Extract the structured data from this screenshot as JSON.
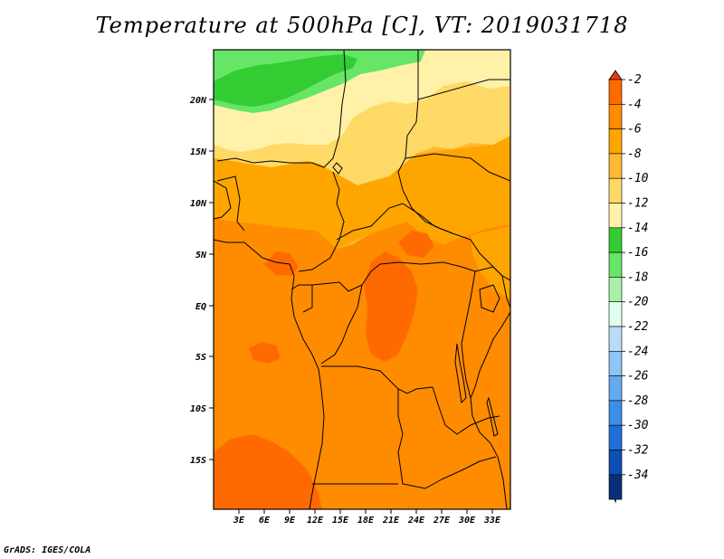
{
  "title": "Temperature at 500hPa [C], VT: 2019031718",
  "credit": "GrADS: IGES/COLA",
  "map": {
    "lon_labels": [
      "3E",
      "6E",
      "9E",
      "12E",
      "15E",
      "18E",
      "21E",
      "24E",
      "27E",
      "30E",
      "33E"
    ],
    "lat_labels": [
      "20N",
      "15N",
      "10N",
      "5N",
      "EQ",
      "5S",
      "10S",
      "15S"
    ]
  },
  "colorbar": {
    "levels": [
      "-2",
      "-4",
      "-6",
      "-8",
      "-10",
      "-12",
      "-14",
      "-16",
      "-18",
      "-20",
      "-22",
      "-24",
      "-26",
      "-28",
      "-30",
      "-32",
      "-34"
    ],
    "colors": [
      "#ff6a00",
      "#ff8c00",
      "#ffa500",
      "#ffb933",
      "#ffd966",
      "#fff2a8",
      "#33cc33",
      "#66e566",
      "#a8f0a8",
      "#e0fff0",
      "#b8dcf8",
      "#8ec5f4",
      "#64aaef",
      "#3c8ee6",
      "#1f6fd6",
      "#0c4fb5",
      "#08307a",
      "#06156a"
    ],
    "top_arrow_color": "#e8380e",
    "bottom_arrow_color": "#dcdcf5"
  },
  "fill_colors": {
    "red": "#ff6a00",
    "orange": "#ff8c00",
    "light_orange": "#ffa500",
    "amber": "#ffb933",
    "yellow": "#ffd966",
    "pale": "#fff2a8",
    "green_dark": "#33cc33",
    "green_light": "#66e566"
  }
}
